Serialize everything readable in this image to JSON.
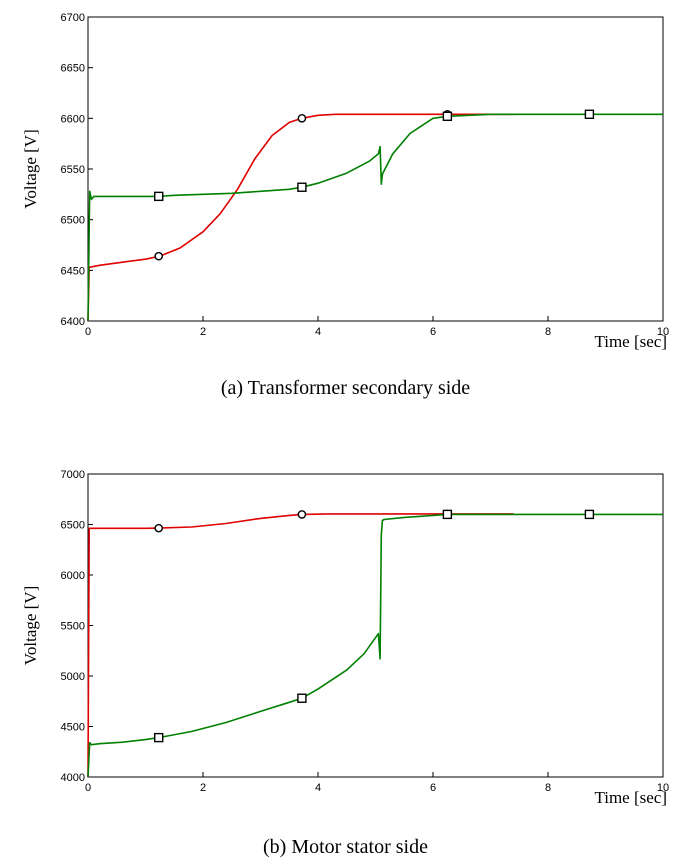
{
  "chart_data": [
    {
      "type": "line",
      "caption": "(a)  Transformer  secondary  side",
      "xlabel": "Time [sec]",
      "ylabel": "Voltage [V]",
      "xlim": [
        0,
        10
      ],
      "ylim": [
        6400,
        6700
      ],
      "xticks": [
        0,
        2,
        4,
        6,
        8,
        10
      ],
      "yticks": [
        6400,
        6450,
        6500,
        6550,
        6600,
        6650,
        6700
      ],
      "grid": false,
      "series": [
        {
          "color": "#e00000",
          "marker": "circle",
          "x": [
            0,
            0.02,
            0.2,
            0.6,
            1.0,
            1.25,
            1.6,
            2.0,
            2.3,
            2.6,
            2.9,
            3.2,
            3.5,
            3.72,
            4.0,
            4.3,
            5.0,
            6.25,
            7.4
          ],
          "y": [
            6400,
            6453,
            6455,
            6458,
            6461,
            6464,
            6472,
            6488,
            6506,
            6530,
            6560,
            6583,
            6596,
            6600,
            6603,
            6604,
            6604,
            6604,
            6604
          ],
          "marker_x": [
            1.23,
            3.72,
            6.25
          ],
          "marker_y": [
            6464,
            6600,
            6604
          ]
        },
        {
          "color": "#008000",
          "marker": "square",
          "x": [
            0,
            0.03,
            0.06,
            0.1,
            0.5,
            1.0,
            1.23,
            1.5,
            2.0,
            2.5,
            3.0,
            3.5,
            3.72,
            4.0,
            4.5,
            4.9,
            5.05,
            5.08,
            5.1,
            5.12,
            5.3,
            5.6,
            6.0,
            6.25,
            7.0,
            8.0,
            8.72,
            10.0
          ],
          "y": [
            6400,
            6528,
            6520,
            6523,
            6523,
            6523,
            6523,
            6524,
            6525,
            6526,
            6528,
            6530,
            6532,
            6536,
            6546,
            6558,
            6565,
            6572,
            6535,
            6545,
            6565,
            6585,
            6600,
            6602,
            6604,
            6604,
            6604,
            6604
          ],
          "marker_x": [
            1.23,
            3.72,
            6.25,
            8.72
          ],
          "marker_y": [
            6523,
            6532,
            6602,
            6604
          ]
        }
      ]
    },
    {
      "type": "line",
      "caption": "(b)  Motor  stator  side",
      "xlabel": "Time [sec]",
      "ylabel": "Voltage [V]",
      "xlim": [
        0,
        10
      ],
      "ylim": [
        4000,
        7000
      ],
      "xticks": [
        0,
        2,
        4,
        6,
        8,
        10
      ],
      "yticks": [
        4000,
        4500,
        5000,
        5500,
        6000,
        6500,
        7000
      ],
      "grid": false,
      "series": [
        {
          "color": "#e00000",
          "marker": "circle",
          "x": [
            0,
            0.02,
            0.05,
            0.5,
            1.0,
            1.23,
            1.8,
            2.4,
            3.0,
            3.5,
            3.72,
            4.2,
            5.0,
            6.25,
            7.4
          ],
          "y": [
            4000,
            6462,
            6462,
            6462,
            6462,
            6464,
            6475,
            6510,
            6560,
            6590,
            6600,
            6605,
            6605,
            6605,
            6605
          ],
          "marker_x": [
            1.23,
            3.72,
            6.25
          ],
          "marker_y": [
            6464,
            6600,
            6605
          ]
        },
        {
          "color": "#008000",
          "marker": "square",
          "x": [
            0,
            0.03,
            0.06,
            0.2,
            0.6,
            1.0,
            1.23,
            1.8,
            2.4,
            3.0,
            3.5,
            3.72,
            4.0,
            4.5,
            4.8,
            5.05,
            5.08,
            5.1,
            5.12,
            5.15,
            5.5,
            6.0,
            6.25,
            7.0,
            8.0,
            8.72,
            10.0
          ],
          "y": [
            4000,
            4340,
            4320,
            4330,
            4345,
            4370,
            4390,
            4450,
            4540,
            4650,
            4740,
            4780,
            4870,
            5060,
            5220,
            5420,
            5170,
            6400,
            6540,
            6550,
            6570,
            6590,
            6600,
            6600,
            6600,
            6600,
            6600
          ],
          "marker_x": [
            1.23,
            3.72,
            6.25,
            8.72
          ],
          "marker_y": [
            4390,
            4780,
            6600,
            6600
          ]
        }
      ]
    }
  ]
}
